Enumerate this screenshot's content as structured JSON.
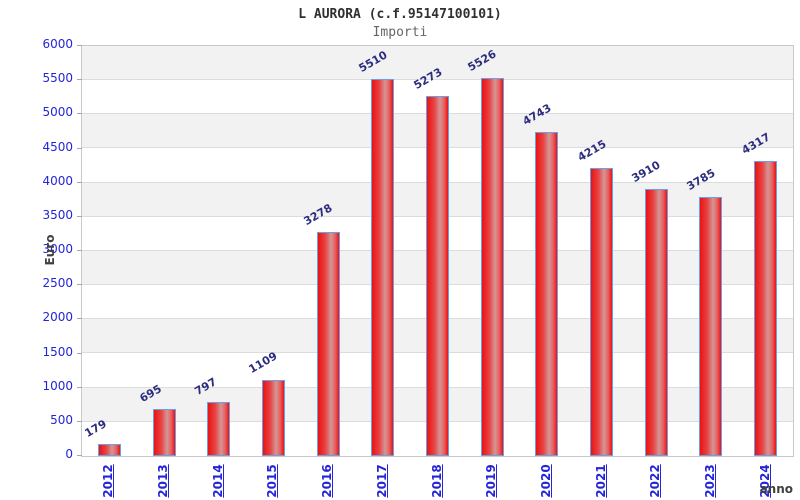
{
  "header": {
    "title": "L AURORA (c.f.95147100101)",
    "subtitle": "Importi"
  },
  "axes": {
    "y_title": "Euro",
    "x_title": "anno"
  },
  "chart_data": {
    "type": "bar",
    "title": "L AURORA (c.f.95147100101)",
    "subtitle": "Importi",
    "xlabel": "anno",
    "ylabel": "Euro",
    "categories": [
      "2012",
      "2013",
      "2014",
      "2015",
      "2016",
      "2017",
      "2018",
      "2019",
      "2020",
      "2021",
      "2022",
      "2023",
      "2024"
    ],
    "values": [
      179,
      695,
      797,
      1109,
      3278,
      5510,
      5273,
      5526,
      4743,
      4215,
      3910,
      3785,
      4317
    ],
    "ylim": [
      0,
      6000
    ],
    "ytick_step": 500,
    "yticks": [
      0,
      500,
      1000,
      1500,
      2000,
      2500,
      3000,
      3500,
      4000,
      4500,
      5000,
      5500,
      6000
    ],
    "grid": "horizontal-bands",
    "legend_position": "none",
    "colors": {
      "bar_edge_red": "#ec1212",
      "bar_center_light": "#d49595",
      "bar_border_blue": "#64a2ec",
      "tick_label_blue": "#2525d8",
      "value_label_navy": "#2d2d80",
      "stripe_gray": "#f2f2f2",
      "gridline_gray": "#dcdcdc",
      "plot_border_gray": "#c9c9c9",
      "axis_title_gray": "#404040"
    }
  }
}
